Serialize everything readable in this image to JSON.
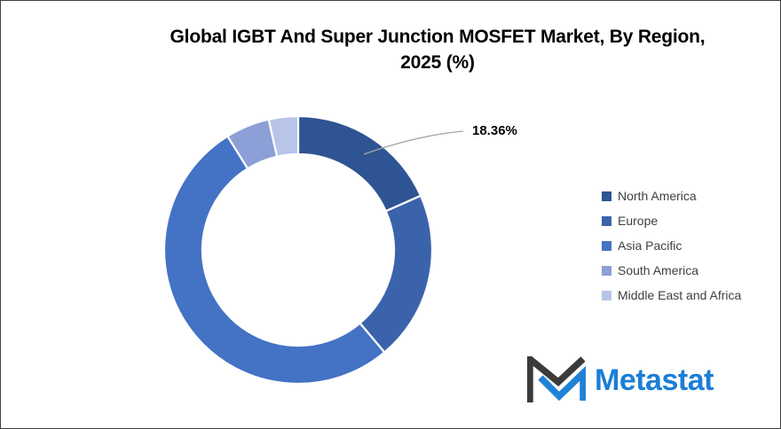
{
  "window": {
    "background": "#ffffff",
    "border_color": "#404040"
  },
  "chart_data": {
    "type": "pie",
    "subtype": "donut",
    "title": "Global IGBT And Super Junction MOSFET Market, By Region, 2025 (%)",
    "title_lines": [
      "Global IGBT And Super Junction MOSFET Market, By Region,",
      "2025 (%)"
    ],
    "categories": [
      "North America",
      "Europe",
      "Asia Pacific",
      "South America",
      "Middle East and Africa"
    ],
    "values": [
      18.36,
      20.5,
      52.3,
      5.3,
      3.54
    ],
    "colors": [
      "#2E5493",
      "#3B63AB",
      "#4472C4",
      "#8C9FD6",
      "#B8C4E8"
    ],
    "start_angle_deg": 0,
    "direction": "clockwise",
    "donut_hole_ratio": 0.715,
    "slice_gap_color": "#ffffff",
    "legend_position": "right",
    "data_labels": [
      {
        "series_index": 0,
        "category": "North America",
        "text": "18.36%"
      }
    ],
    "leader_line_color": "#A6A6A6",
    "legend_text_color": "#3f3f3f"
  },
  "logo": {
    "name": "Metastat",
    "text_color": "#1C7ED6",
    "icon_dark_color": "#3B3B3B",
    "icon_blue_color": "#2082D5"
  }
}
